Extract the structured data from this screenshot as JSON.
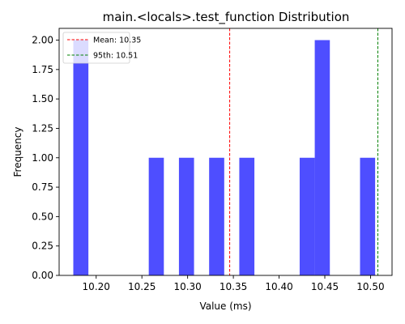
{
  "chart_data": {
    "type": "bar",
    "title": "main.<locals>.test_function Distribution",
    "xlabel": "Value (ms)",
    "ylabel": "Frequency",
    "xlim": [
      10.1595,
      10.5235
    ],
    "ylim": [
      0,
      2.1
    ],
    "x_ticks": [
      10.2,
      10.25,
      10.3,
      10.35,
      10.4,
      10.45,
      10.5
    ],
    "x_tick_labels": [
      "10.20",
      "10.25",
      "10.30",
      "10.35",
      "10.40",
      "10.45",
      "10.50"
    ],
    "y_ticks": [
      0,
      0.25,
      0.5,
      0.75,
      1.0,
      1.25,
      1.5,
      1.75,
      2.0
    ],
    "y_tick_labels": [
      "0.00",
      "0.25",
      "0.50",
      "0.75",
      "1.00",
      "1.25",
      "1.50",
      "1.75",
      "2.00"
    ],
    "bins": [
      {
        "start": 10.175,
        "end": 10.1915,
        "count": 2
      },
      {
        "start": 10.2575,
        "end": 10.274,
        "count": 1
      },
      {
        "start": 10.2905,
        "end": 10.307,
        "count": 1
      },
      {
        "start": 10.3235,
        "end": 10.34,
        "count": 1
      },
      {
        "start": 10.3565,
        "end": 10.373,
        "count": 1
      },
      {
        "start": 10.4225,
        "end": 10.439,
        "count": 1
      },
      {
        "start": 10.439,
        "end": 10.4555,
        "count": 2
      },
      {
        "start": 10.4885,
        "end": 10.505,
        "count": 1
      }
    ],
    "bar_color": "#4444ff",
    "lines": [
      {
        "label": "Mean: 10.35",
        "value": 10.346,
        "color": "#ff0000"
      },
      {
        "label": "95th: 10.51",
        "value": 10.508,
        "color": "#008000"
      }
    ],
    "legend_position": "top-left",
    "grid": false
  }
}
